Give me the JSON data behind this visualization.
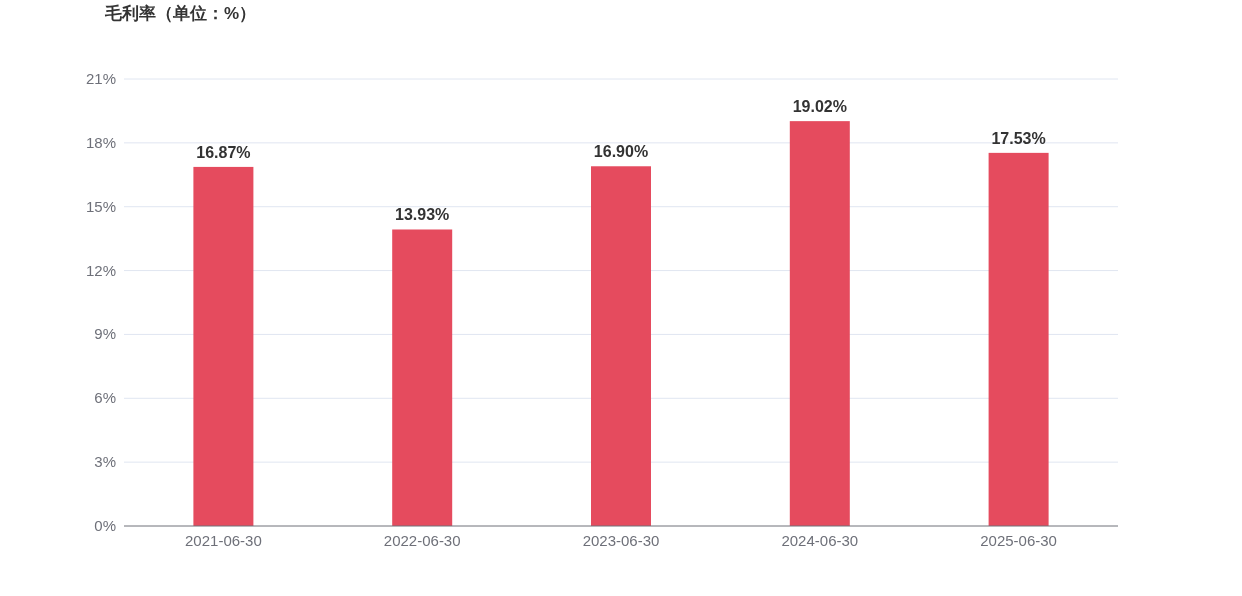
{
  "chart_data": {
    "type": "bar",
    "title": "毛利率（单位：%）",
    "categories": [
      "2021-06-30",
      "2022-06-30",
      "2023-06-30",
      "2024-06-30",
      "2025-06-30"
    ],
    "values": [
      16.87,
      13.93,
      16.9,
      19.02,
      17.53
    ],
    "value_labels": [
      "16.87%",
      "13.93%",
      "16.90%",
      "19.02%",
      "17.53%"
    ],
    "color": "#e54b5e",
    "ylim": [
      0,
      21
    ],
    "yticks": [
      {
        "value": 0,
        "label": "0%"
      },
      {
        "value": 3,
        "label": "3%"
      },
      {
        "value": 6,
        "label": "6%"
      },
      {
        "value": 9,
        "label": "9%"
      },
      {
        "value": 12,
        "label": "12%"
      },
      {
        "value": 15,
        "label": "15%"
      },
      {
        "value": 18,
        "label": "18%"
      },
      {
        "value": 21,
        "label": "21%"
      }
    ],
    "grid": "y"
  }
}
